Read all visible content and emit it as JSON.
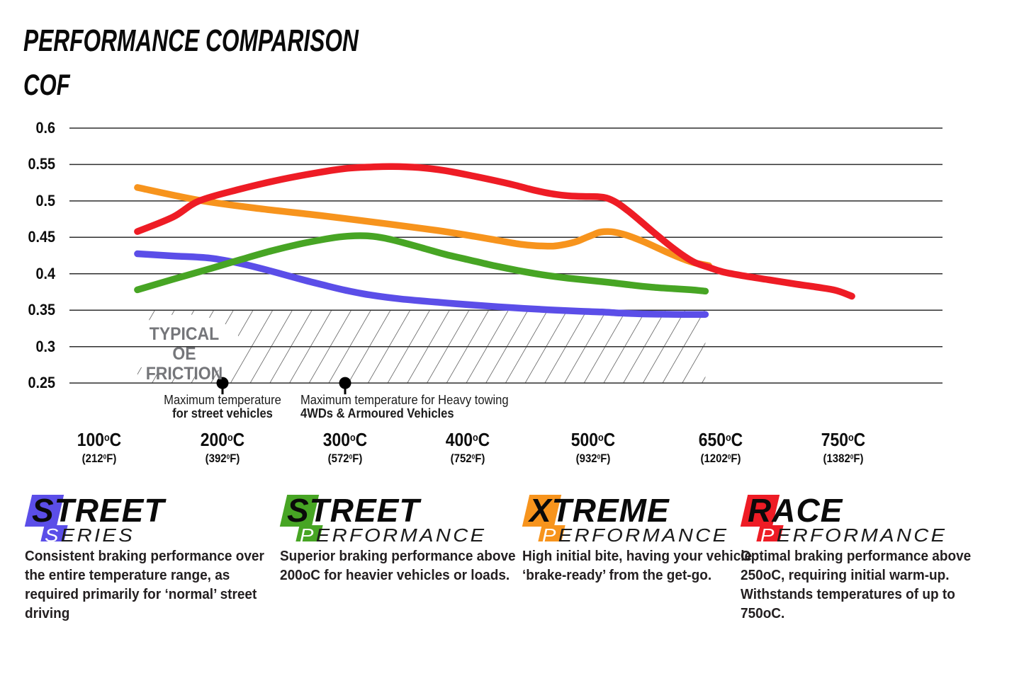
{
  "chart_data": {
    "type": "line",
    "title": "PERFORMANCE COMPARISON",
    "ylabel": "COF",
    "ylim": [
      0.25,
      0.6
    ],
    "grid": true,
    "y_ticks": [
      "0.6",
      "0.55",
      "0.5",
      "0.45",
      "0.4",
      "0.35",
      "0.3",
      "0.25"
    ],
    "x_ticks": [
      {
        "temp": 100,
        "celsius": "100",
        "fahrenheit": "212"
      },
      {
        "temp": 200,
        "celsius": "200",
        "fahrenheit": "392"
      },
      {
        "temp": 300,
        "celsius": "300",
        "fahrenheit": "572"
      },
      {
        "temp": 400,
        "celsius": "400",
        "fahrenheit": "752"
      },
      {
        "temp": 500,
        "celsius": "500",
        "fahrenheit": "932"
      },
      {
        "temp": 650,
        "celsius": "650",
        "fahrenheit": "1202"
      },
      {
        "temp": 750,
        "celsius": "750",
        "fahrenheit": "1382"
      }
    ],
    "series": [
      {
        "name": "Street Series",
        "color": "#5b4ee8",
        "points": [
          [
            131,
            0.4275
          ],
          [
            160,
            0.4245
          ],
          [
            190,
            0.4215
          ],
          [
            215,
            0.414
          ],
          [
            240,
            0.4035
          ],
          [
            265,
            0.392
          ],
          [
            285,
            0.3835
          ],
          [
            300,
            0.3775
          ],
          [
            320,
            0.371
          ],
          [
            345,
            0.3655
          ],
          [
            375,
            0.361
          ],
          [
            405,
            0.357
          ],
          [
            435,
            0.3535
          ],
          [
            465,
            0.3505
          ],
          [
            490,
            0.3485
          ],
          [
            510,
            0.3475
          ],
          [
            530,
            0.3462
          ],
          [
            555,
            0.345
          ],
          [
            580,
            0.3445
          ],
          [
            605,
            0.3442
          ],
          [
            632,
            0.3442
          ]
        ]
      },
      {
        "name": "Street Performance",
        "color": "#47a524",
        "points": [
          [
            131,
            0.378
          ],
          [
            160,
            0.3925
          ],
          [
            190,
            0.407
          ],
          [
            215,
            0.4195
          ],
          [
            240,
            0.4315
          ],
          [
            262,
            0.4405
          ],
          [
            280,
            0.4465
          ],
          [
            295,
            0.4505
          ],
          [
            308,
            0.4522
          ],
          [
            320,
            0.4518
          ],
          [
            332,
            0.449
          ],
          [
            348,
            0.4425
          ],
          [
            365,
            0.4345
          ],
          [
            382,
            0.4265
          ],
          [
            400,
            0.4195
          ],
          [
            420,
            0.4115
          ],
          [
            440,
            0.4045
          ],
          [
            460,
            0.3985
          ],
          [
            480,
            0.394
          ],
          [
            500,
            0.3905
          ],
          [
            520,
            0.388
          ],
          [
            545,
            0.3845
          ],
          [
            570,
            0.3815
          ],
          [
            595,
            0.3795
          ],
          [
            615,
            0.378
          ],
          [
            632,
            0.3762
          ]
        ]
      },
      {
        "name": "Xtreme Performance",
        "color": "#f7941d",
        "points": [
          [
            131,
            0.5185
          ],
          [
            181,
            0.501
          ],
          [
            230,
            0.4895
          ],
          [
            280,
            0.48
          ],
          [
            330,
            0.4695
          ],
          [
            375,
            0.4595
          ],
          [
            405,
            0.4515
          ],
          [
            425,
            0.4455
          ],
          [
            442,
            0.4405
          ],
          [
            455,
            0.4385
          ],
          [
            468,
            0.438
          ],
          [
            478,
            0.4405
          ],
          [
            487,
            0.4445
          ],
          [
            494,
            0.4495
          ],
          [
            500,
            0.4535
          ],
          [
            506,
            0.4565
          ],
          [
            513,
            0.4578
          ],
          [
            521,
            0.4578
          ],
          [
            530,
            0.456
          ],
          [
            539,
            0.4532
          ],
          [
            549,
            0.449
          ],
          [
            560,
            0.4438
          ],
          [
            572,
            0.4375
          ],
          [
            585,
            0.4305
          ],
          [
            598,
            0.424
          ],
          [
            610,
            0.4185
          ],
          [
            621,
            0.4145
          ],
          [
            630,
            0.4125
          ],
          [
            636,
            0.4112
          ]
        ]
      },
      {
        "name": "Race Performance",
        "color": "#ee1c25",
        "points": [
          [
            131,
            0.458
          ],
          [
            160,
            0.478
          ],
          [
            181,
            0.5
          ],
          [
            215,
            0.5165
          ],
          [
            248,
            0.5295
          ],
          [
            278,
            0.539
          ],
          [
            300,
            0.5445
          ],
          [
            318,
            0.5465
          ],
          [
            338,
            0.5473
          ],
          [
            360,
            0.546
          ],
          [
            382,
            0.5415
          ],
          [
            405,
            0.534
          ],
          [
            423,
            0.5275
          ],
          [
            438,
            0.5215
          ],
          [
            450,
            0.516
          ],
          [
            461,
            0.5118
          ],
          [
            471,
            0.5088
          ],
          [
            481,
            0.507
          ],
          [
            492,
            0.5062
          ],
          [
            505,
            0.5058
          ],
          [
            516,
            0.504
          ],
          [
            528,
            0.4975
          ],
          [
            541,
            0.4865
          ],
          [
            555,
            0.473
          ],
          [
            569,
            0.459
          ],
          [
            583,
            0.4455
          ],
          [
            596,
            0.4335
          ],
          [
            608,
            0.4235
          ],
          [
            619,
            0.4158
          ],
          [
            628,
            0.4118
          ],
          [
            636,
            0.4088
          ],
          [
            652,
            0.4025
          ],
          [
            670,
            0.3968
          ],
          [
            690,
            0.3915
          ],
          [
            710,
            0.3862
          ],
          [
            728,
            0.3818
          ],
          [
            744,
            0.3772
          ],
          [
            757,
            0.3692
          ]
        ]
      }
    ],
    "oe_zone": {
      "label": [
        "TYPICAL OE",
        "FRICTION"
      ],
      "cof_range": [
        0.25,
        0.35
      ],
      "temp_range": [
        131,
        632
      ]
    },
    "markers": [
      {
        "temp": 200,
        "cof": 0.25,
        "line1": "Maximum temperature",
        "line2": "for street vehicles"
      },
      {
        "temp": 300,
        "cof": 0.25,
        "line1": "Maximum temperature for Heavy towing",
        "line2": "4WDs & Armoured Vehicles"
      }
    ]
  },
  "legend": [
    {
      "word1": "STREET",
      "word2": "SERIES",
      "color": "#5b4ee8",
      "description": "Consistent braking performance over the entire temperature range, as required primarily for ‘normal’ street driving"
    },
    {
      "word1": "STREET",
      "word2": "PERFORMANCE",
      "color": "#47a524",
      "description": "Superior braking performance above 200oC for heavier vehicles or loads."
    },
    {
      "word1": "XTREME",
      "word2": "PERFORMANCE",
      "color": "#f7941d",
      "description": "High initial bite, having your vehicle ‘brake-ready’ from the get-go."
    },
    {
      "word1": "RACE",
      "word2": "PERFORMANCE",
      "color": "#ee1c25",
      "description": "Optimal braking performance above 250oC, requiring initial warm-up. Withstands temperatures of up to 750oC."
    }
  ]
}
